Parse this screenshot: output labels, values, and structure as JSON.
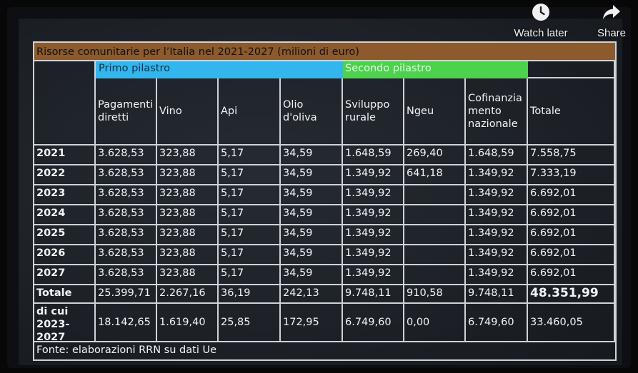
{
  "overlay": {
    "watch_later_label": "Watch later",
    "watch_later_icon": "clock-icon",
    "share_label": "Share",
    "share_icon": "share-arrow-icon"
  },
  "table": {
    "title": "Risorse comunitarie per l’Italia nel 2021-2027 (milioni di euro)",
    "group_primo": "Primo pilastro",
    "group_secondo": "Secondo pilastro",
    "columns": [
      "Pagamenti diretti",
      "Vino",
      "Api",
      "Olio d'oliva",
      "Sviluppo rurale",
      "Ngeu",
      "Cofinanzia mento nazionale",
      "Totale"
    ],
    "rows": [
      {
        "label": "2021",
        "cells": [
          "3.628,53",
          "323,88",
          "5,17",
          "34,59",
          "1.648,59",
          "269,40",
          "1.648,59",
          "7.558,75"
        ]
      },
      {
        "label": "2022",
        "cells": [
          "3.628,53",
          "323,88",
          "5,17",
          "34,59",
          "1.349,92",
          "641,18",
          "1.349,92",
          "7.333,19"
        ]
      },
      {
        "label": "2023",
        "cells": [
          "3.628,53",
          "323,88",
          "5,17",
          "34,59",
          "1.349,92",
          "",
          "1.349,92",
          "6.692,01"
        ]
      },
      {
        "label": "2024",
        "cells": [
          "3.628,53",
          "323,88",
          "5,17",
          "34,59",
          "1.349,92",
          "",
          "1.349,92",
          "6.692,01"
        ]
      },
      {
        "label": "2025",
        "cells": [
          "3.628,53",
          "323,88",
          "5,17",
          "34,59",
          "1.349,92",
          "",
          "1.349,92",
          "6.692,01"
        ]
      },
      {
        "label": "2026",
        "cells": [
          "3.628,53",
          "323,88",
          "5,17",
          "34,59",
          "1.349,92",
          "",
          "1.349,92",
          "6.692,01"
        ]
      },
      {
        "label": "2027",
        "cells": [
          "3.628,53",
          "323,88",
          "5,17",
          "34,59",
          "1.349,92",
          "",
          "1.349,92",
          "6.692,01"
        ]
      },
      {
        "label": "Totale",
        "cells": [
          "25.399,71",
          "2.267,16",
          "36,19",
          "242,13",
          "9.748,11",
          "910,58",
          "9.748,11",
          "48.351,99"
        ]
      },
      {
        "label": "di cui 2023-2027",
        "cells": [
          "18.142,65",
          "1.619,40",
          "25,85",
          "172,95",
          "6.749,60",
          "0,00",
          "6.749,60",
          "33.460,05"
        ]
      }
    ],
    "source": "Fonte: elaborazioni RRN su dati Ue"
  },
  "colors": {
    "title_bar": "#8c5a2c",
    "primo_band": "#33b6ee",
    "secondo_band": "#4dd24d",
    "grid_lines": "#cfd3d8",
    "screen_bg": "#1c2027"
  }
}
